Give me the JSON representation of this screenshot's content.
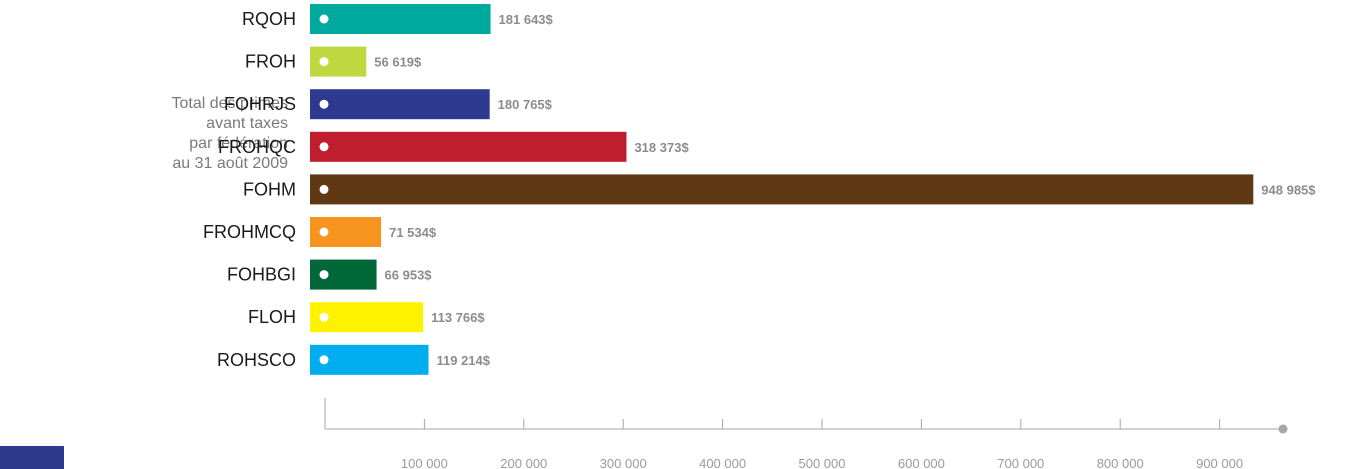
{
  "caption": {
    "lines": [
      "Total des primes",
      "avant taxes",
      "par fédération",
      "au 31 août 2009"
    ]
  },
  "colors": {
    "axis": "#a6a6a6",
    "tick_label": "#9b9b9b",
    "value_label": "#8c8c8c",
    "category_label": "#1a1a1a",
    "corner_block": "#2d3a8c"
  },
  "chart_data": {
    "type": "bar",
    "orientation": "horizontal",
    "categories": [
      "RQOH",
      "FROH",
      "FOHRJS",
      "FROHQC",
      "FOHM",
      "FROHMCQ",
      "FOHBGI",
      "FLOH",
      "ROHSCO"
    ],
    "values": [
      181643,
      56619,
      180765,
      318373,
      948985,
      71534,
      66953,
      113766,
      119214
    ],
    "value_labels": [
      "181 643$",
      "56 619$",
      "180 765$",
      "318 373$",
      "948 985$",
      "71 534$",
      "66 953$",
      "113 766$",
      "119 214$"
    ],
    "colors": [
      "#00a99d",
      "#c0d840",
      "#2e3a8f",
      "#be1e2d",
      "#603813",
      "#f7941d",
      "#006838",
      "#fff200",
      "#00aeef"
    ],
    "x_ticks": [
      100000,
      200000,
      300000,
      400000,
      500000,
      600000,
      700000,
      800000,
      900000
    ],
    "x_tick_labels": [
      "100 000",
      "200 000",
      "300 000",
      "400 000",
      "500 000",
      "600 000",
      "700 000",
      "800 000",
      "900 000"
    ],
    "xlim": [
      0,
      950000
    ],
    "title": "",
    "xlabel": "",
    "ylabel": "",
    "grid": false,
    "legend": "none"
  }
}
